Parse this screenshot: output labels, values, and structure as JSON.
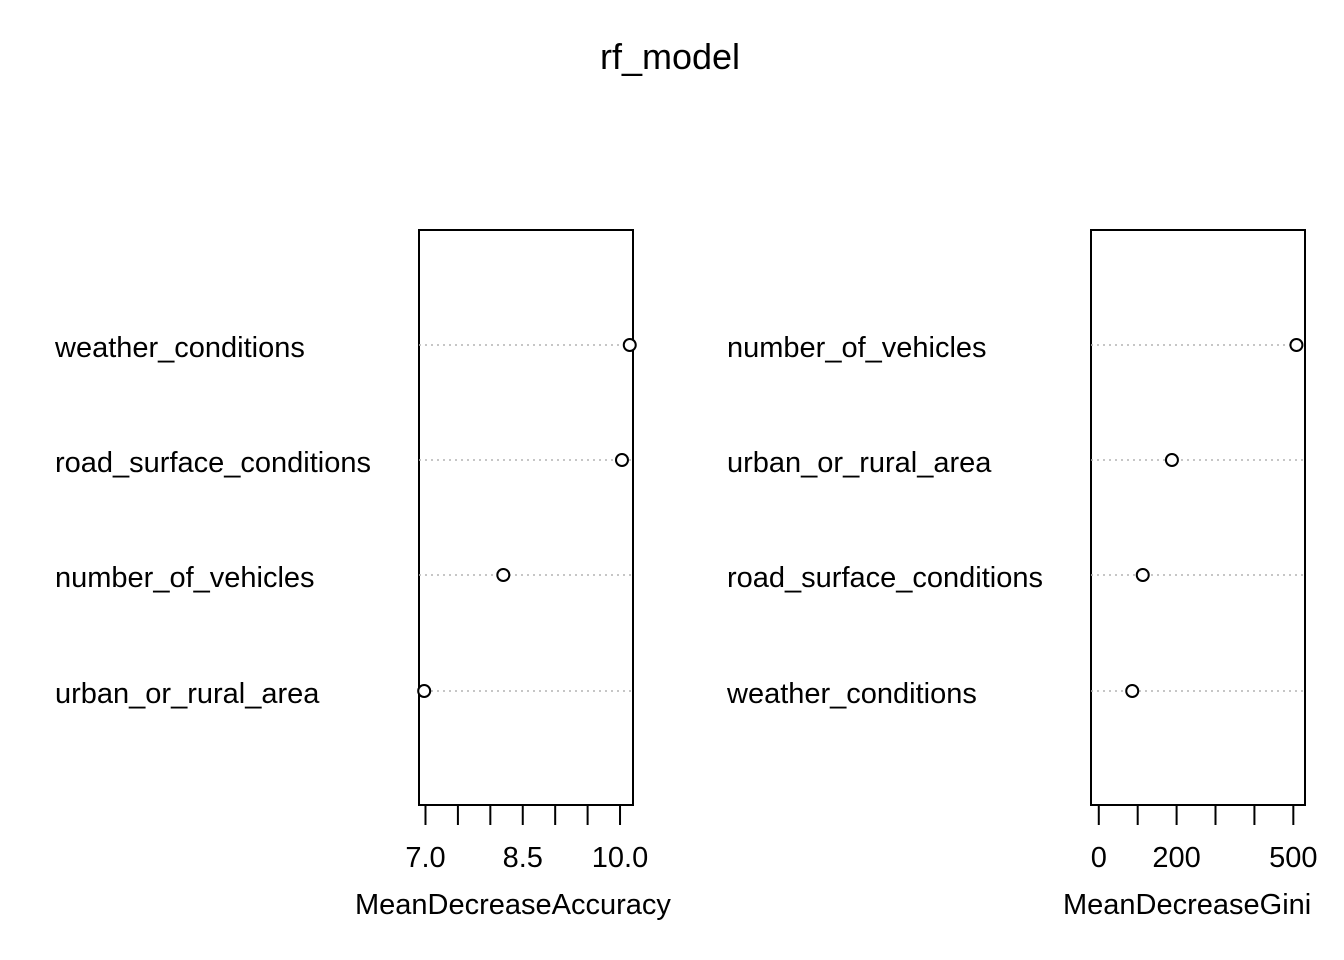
{
  "title": "rf_model",
  "chart_data": [
    {
      "type": "scatter",
      "subtype": "dotchart",
      "xlabel": "MeanDecreaseAccuracy",
      "xlim": [
        6.9,
        10.2
      ],
      "tick_labels": [
        "7.0",
        "8.5",
        "10.0"
      ],
      "minor_ticks": [
        7.0,
        7.5,
        8.0,
        8.5,
        9.0,
        9.5,
        10.0
      ],
      "major_ticks": [
        7.0,
        8.5,
        10.0
      ],
      "categories": [
        "weather_conditions",
        "road_surface_conditions",
        "number_of_vehicles",
        "urban_or_rural_area"
      ],
      "values": [
        10.15,
        10.03,
        8.2,
        6.98
      ],
      "grid": "dotted horizontal per row"
    },
    {
      "type": "scatter",
      "subtype": "dotchart",
      "xlabel": "MeanDecreaseGini",
      "xlim": [
        -20,
        530
      ],
      "tick_labels": [
        "0",
        "200",
        "500"
      ],
      "minor_ticks": [
        0,
        100,
        200,
        300,
        400,
        500
      ],
      "major_ticks": [
        0,
        200,
        500
      ],
      "categories": [
        "number_of_vehicles",
        "urban_or_rural_area",
        "road_surface_conditions",
        "weather_conditions"
      ],
      "values": [
        508,
        188,
        113,
        86
      ],
      "grid": "dotted horizontal per row"
    }
  ]
}
